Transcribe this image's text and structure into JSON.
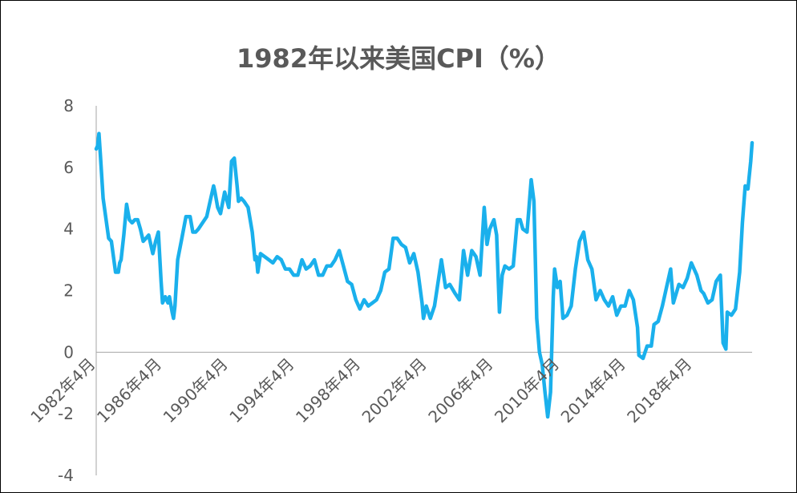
{
  "colors": {
    "line": "#1ab0ec",
    "axis": "#a6a6a6",
    "text": "#595959"
  },
  "chart_data": {
    "type": "line",
    "title": "1982年以来美国CPI（%）",
    "xlabel": "",
    "ylabel": "",
    "ylim": [
      -4,
      8
    ],
    "yticks": [
      -4,
      -2,
      0,
      2,
      4,
      6,
      8
    ],
    "grid": false,
    "legend": "none",
    "x_range": [
      "1982-04",
      "2021-11"
    ],
    "xtick_labels": [
      "1982年4月",
      "1986年4月",
      "1990年4月",
      "1994年4月",
      "1998年4月",
      "2002年4月",
      "2006年4月",
      "2010年4月",
      "2014年4月",
      "2018年4月"
    ],
    "series": [
      {
        "x": [
          "1982-04",
          "1982-05",
          "1982-06",
          "1982-07",
          "1982-09",
          "1983-01",
          "1983-03",
          "1983-06",
          "1983-08",
          "1983-09",
          "1983-10",
          "1983-12",
          "1984-02",
          "1984-04",
          "1984-06",
          "1984-08",
          "1984-10",
          "1984-12",
          "1985-02",
          "1985-04",
          "1985-06",
          "1985-09",
          "1985-11",
          "1986-01",
          "1986-03",
          "1986-04",
          "1986-06",
          "1986-08",
          "1986-09",
          "1986-11",
          "1986-12",
          "1987-01",
          "1987-03",
          "1987-06",
          "1987-09",
          "1987-12",
          "1988-02",
          "1988-04",
          "1988-06",
          "1988-09",
          "1988-12",
          "1989-03",
          "1989-05",
          "1989-06",
          "1989-08",
          "1989-10",
          "1990-01",
          "1990-04",
          "1990-06",
          "1990-08",
          "1990-10",
          "1990-11",
          "1991-01",
          "1991-03",
          "1991-06",
          "1991-09",
          "1991-11",
          "1991-12",
          "1992-01",
          "1992-03",
          "1992-06",
          "1992-09",
          "1992-12",
          "1993-03",
          "1993-06",
          "1993-09",
          "1993-12",
          "1994-03",
          "1994-06",
          "1994-09",
          "1994-12",
          "1995-03",
          "1995-06",
          "1995-09",
          "1995-12",
          "1996-03",
          "1996-06",
          "1996-09",
          "1996-12",
          "1997-03",
          "1997-06",
          "1997-09",
          "1997-12",
          "1998-03",
          "1998-06",
          "1998-09",
          "1998-12",
          "1999-03",
          "1999-06",
          "1999-09",
          "1999-12",
          "2000-03",
          "2000-06",
          "2000-09",
          "2000-12",
          "2001-03",
          "2001-06",
          "2001-09",
          "2001-12",
          "2002-01",
          "2002-03",
          "2002-06",
          "2002-09",
          "2002-12",
          "2003-02",
          "2003-05",
          "2003-08",
          "2003-12",
          "2004-03",
          "2004-06",
          "2004-09",
          "2004-12",
          "2005-03",
          "2005-06",
          "2005-09",
          "2005-11",
          "2006-01",
          "2006-04",
          "2006-06",
          "2006-08",
          "2006-10",
          "2006-12",
          "2007-03",
          "2007-06",
          "2007-09",
          "2007-11",
          "2008-01",
          "2008-04",
          "2008-07",
          "2008-09",
          "2008-11",
          "2009-01",
          "2009-03",
          "2009-05",
          "2009-07",
          "2009-09",
          "2009-11",
          "2009-12",
          "2010-02",
          "2010-04",
          "2010-06",
          "2010-09",
          "2010-12",
          "2011-03",
          "2011-06",
          "2011-09",
          "2011-12",
          "2012-03",
          "2012-06",
          "2012-09",
          "2012-12",
          "2013-03",
          "2013-06",
          "2013-09",
          "2013-12",
          "2014-03",
          "2014-06",
          "2014-09",
          "2014-12",
          "2015-01",
          "2015-04",
          "2015-07",
          "2015-10",
          "2015-12",
          "2016-03",
          "2016-06",
          "2016-09",
          "2016-12",
          "2017-02",
          "2017-06",
          "2017-09",
          "2017-12",
          "2018-03",
          "2018-07",
          "2018-10",
          "2018-12",
          "2019-03",
          "2019-06",
          "2019-09",
          "2019-12",
          "2020-02",
          "2020-04",
          "2020-05",
          "2020-08",
          "2020-11",
          "2021-02",
          "2021-04",
          "2021-06",
          "2021-08",
          "2021-10",
          "2021-11"
        ],
        "y": [
          6.6,
          6.7,
          7.1,
          6.4,
          5.0,
          3.7,
          3.6,
          2.6,
          2.6,
          2.9,
          3.0,
          3.8,
          4.8,
          4.3,
          4.2,
          4.3,
          4.3,
          4.0,
          3.6,
          3.7,
          3.8,
          3.2,
          3.6,
          3.9,
          2.3,
          1.6,
          1.8,
          1.6,
          1.8,
          1.3,
          1.1,
          1.5,
          3.0,
          3.7,
          4.4,
          4.4,
          3.9,
          3.9,
          4.0,
          4.2,
          4.4,
          5.0,
          5.4,
          5.2,
          4.7,
          4.5,
          5.2,
          4.7,
          6.2,
          6.3,
          5.4,
          4.9,
          5.0,
          4.9,
          4.7,
          3.9,
          3.0,
          3.1,
          2.6,
          3.2,
          3.1,
          3.0,
          2.9,
          3.1,
          3.0,
          2.7,
          2.7,
          2.5,
          2.5,
          3.0,
          2.7,
          2.8,
          3.0,
          2.5,
          2.5,
          2.8,
          2.8,
          3.0,
          3.3,
          2.8,
          2.3,
          2.2,
          1.7,
          1.4,
          1.7,
          1.5,
          1.6,
          1.7,
          2.0,
          2.6,
          2.7,
          3.7,
          3.7,
          3.5,
          3.4,
          2.9,
          3.2,
          2.6,
          1.6,
          1.1,
          1.5,
          1.1,
          1.5,
          2.4,
          3.0,
          2.1,
          2.2,
          1.9,
          1.7,
          3.3,
          2.5,
          3.3,
          3.1,
          2.5,
          4.7,
          3.5,
          4.0,
          4.3,
          3.8,
          1.3,
          2.5,
          2.8,
          2.7,
          2.8,
          4.3,
          4.3,
          4.0,
          3.9,
          5.6,
          4.9,
          1.1,
          0.0,
          -0.4,
          -1.3,
          -2.1,
          -1.3,
          1.8,
          2.7,
          2.1,
          2.3,
          1.1,
          1.2,
          1.5,
          2.7,
          3.6,
          3.9,
          3.0,
          2.7,
          1.7,
          2.0,
          1.7,
          1.5,
          1.8,
          1.2,
          1.5,
          1.5,
          2.0,
          1.7,
          0.8,
          -0.1,
          -0.2,
          0.2,
          0.2,
          0.9,
          1.0,
          1.5,
          2.1,
          2.7,
          1.6,
          2.2,
          2.1,
          2.4,
          2.9,
          2.5,
          2.0,
          1.9,
          1.6,
          1.7,
          2.3,
          2.5,
          0.3,
          0.1,
          1.3,
          1.2,
          1.4,
          2.6,
          4.2,
          5.4,
          5.3,
          6.2,
          6.8
        ]
      }
    ]
  }
}
